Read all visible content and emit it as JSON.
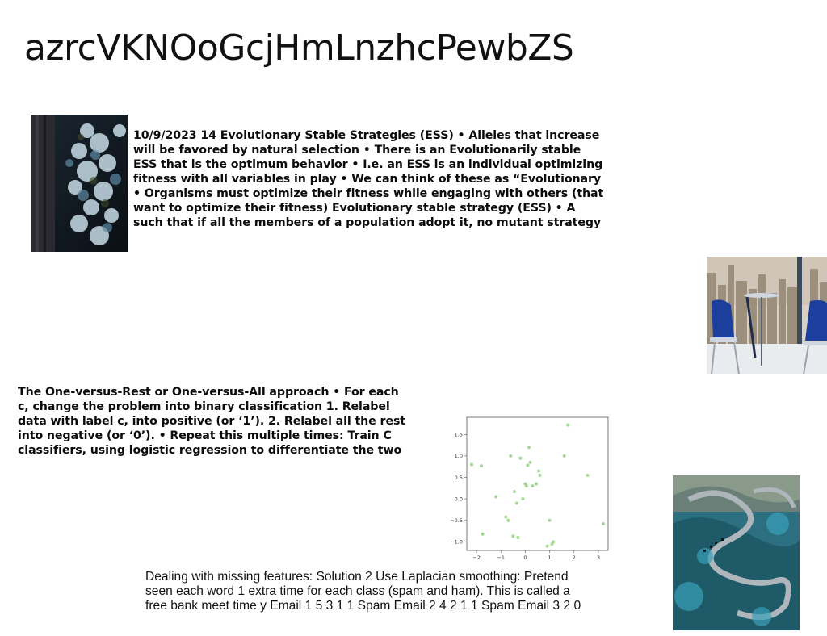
{
  "slide": {
    "title": "azrcVKNOoGcjHmLnzhcPewbZS",
    "ess_lines": [
      "10/9/2023 14 Evolutionary Stable Strategies (ESS) • Alleles that increase",
      "will be favored by natural selection • There is an Evolutionarily stable",
      "ESS that is the optimum behavior • I.e. an ESS is an individual optimizing",
      "fitness with all variables in play • We can think of these as “Evolutionary",
      "• Organisms must optimize their fitness while engaging with others (that",
      "want to optimize their fitness) Evolutionary stable strategy (ESS) • A",
      "such that if all the members of a population adopt it, no mutant strategy"
    ],
    "ovr_lines": [
      "The One-versus-Rest or One-versus-All approach • For each",
      "c, change the problem into binary classification 1. Relabel",
      "data with label c, into positive (or ‘1’). 2. Relabel all the rest",
      "into negative (or ‘0’). • Repeat this multiple times: Train C",
      "classifiers, using logistic regression to differentiate the two"
    ],
    "missing_lines": [
      "Dealing with missing features: Solution 2 Use Laplacian smoothing: Pretend",
      "seen each word 1 extra time for each class (spam and ham). This is called a",
      "free bank meet time y Email 1 5 3 1 1 Spam Email 2 4 2 1 1 Spam Email 3 2 0"
    ],
    "images": [
      {
        "name": "frosted-tree-photo"
      },
      {
        "name": "cafe-city-view-photo"
      },
      {
        "name": "mountain-road-photo"
      }
    ]
  },
  "chart_data": {
    "type": "scatter",
    "title": "",
    "xlabel": "",
    "ylabel": "",
    "xlim": [
      -2.4,
      3.4
    ],
    "ylim": [
      -1.2,
      1.9
    ],
    "xticks": [
      "-2",
      "-1",
      "0",
      "1",
      "2",
      "3"
    ],
    "yticks": [
      "1.5",
      "1.0",
      "0.5",
      "0.0",
      "-0.5",
      "-1.0"
    ],
    "point_color": "#9bd38a",
    "x": [
      -2.2,
      -1.8,
      -1.75,
      -1.2,
      -0.8,
      -0.7,
      -0.6,
      -0.5,
      -0.45,
      -0.35,
      -0.3,
      -0.2,
      -0.1,
      0.0,
      0.05,
      0.1,
      0.15,
      0.2,
      0.3,
      0.45,
      0.55,
      0.6,
      1.0,
      1.1,
      1.15,
      1.6,
      1.75,
      2.55,
      3.2,
      0.9
    ],
    "y": [
      0.8,
      0.77,
      -0.82,
      0.05,
      -0.42,
      -0.5,
      1.0,
      -0.87,
      0.17,
      -0.1,
      -0.9,
      0.95,
      0.0,
      0.35,
      0.3,
      0.78,
      1.2,
      0.85,
      0.3,
      0.35,
      0.65,
      0.55,
      -0.5,
      -1.05,
      -1.0,
      1.0,
      1.72,
      0.55,
      -0.58,
      -1.1
    ]
  }
}
